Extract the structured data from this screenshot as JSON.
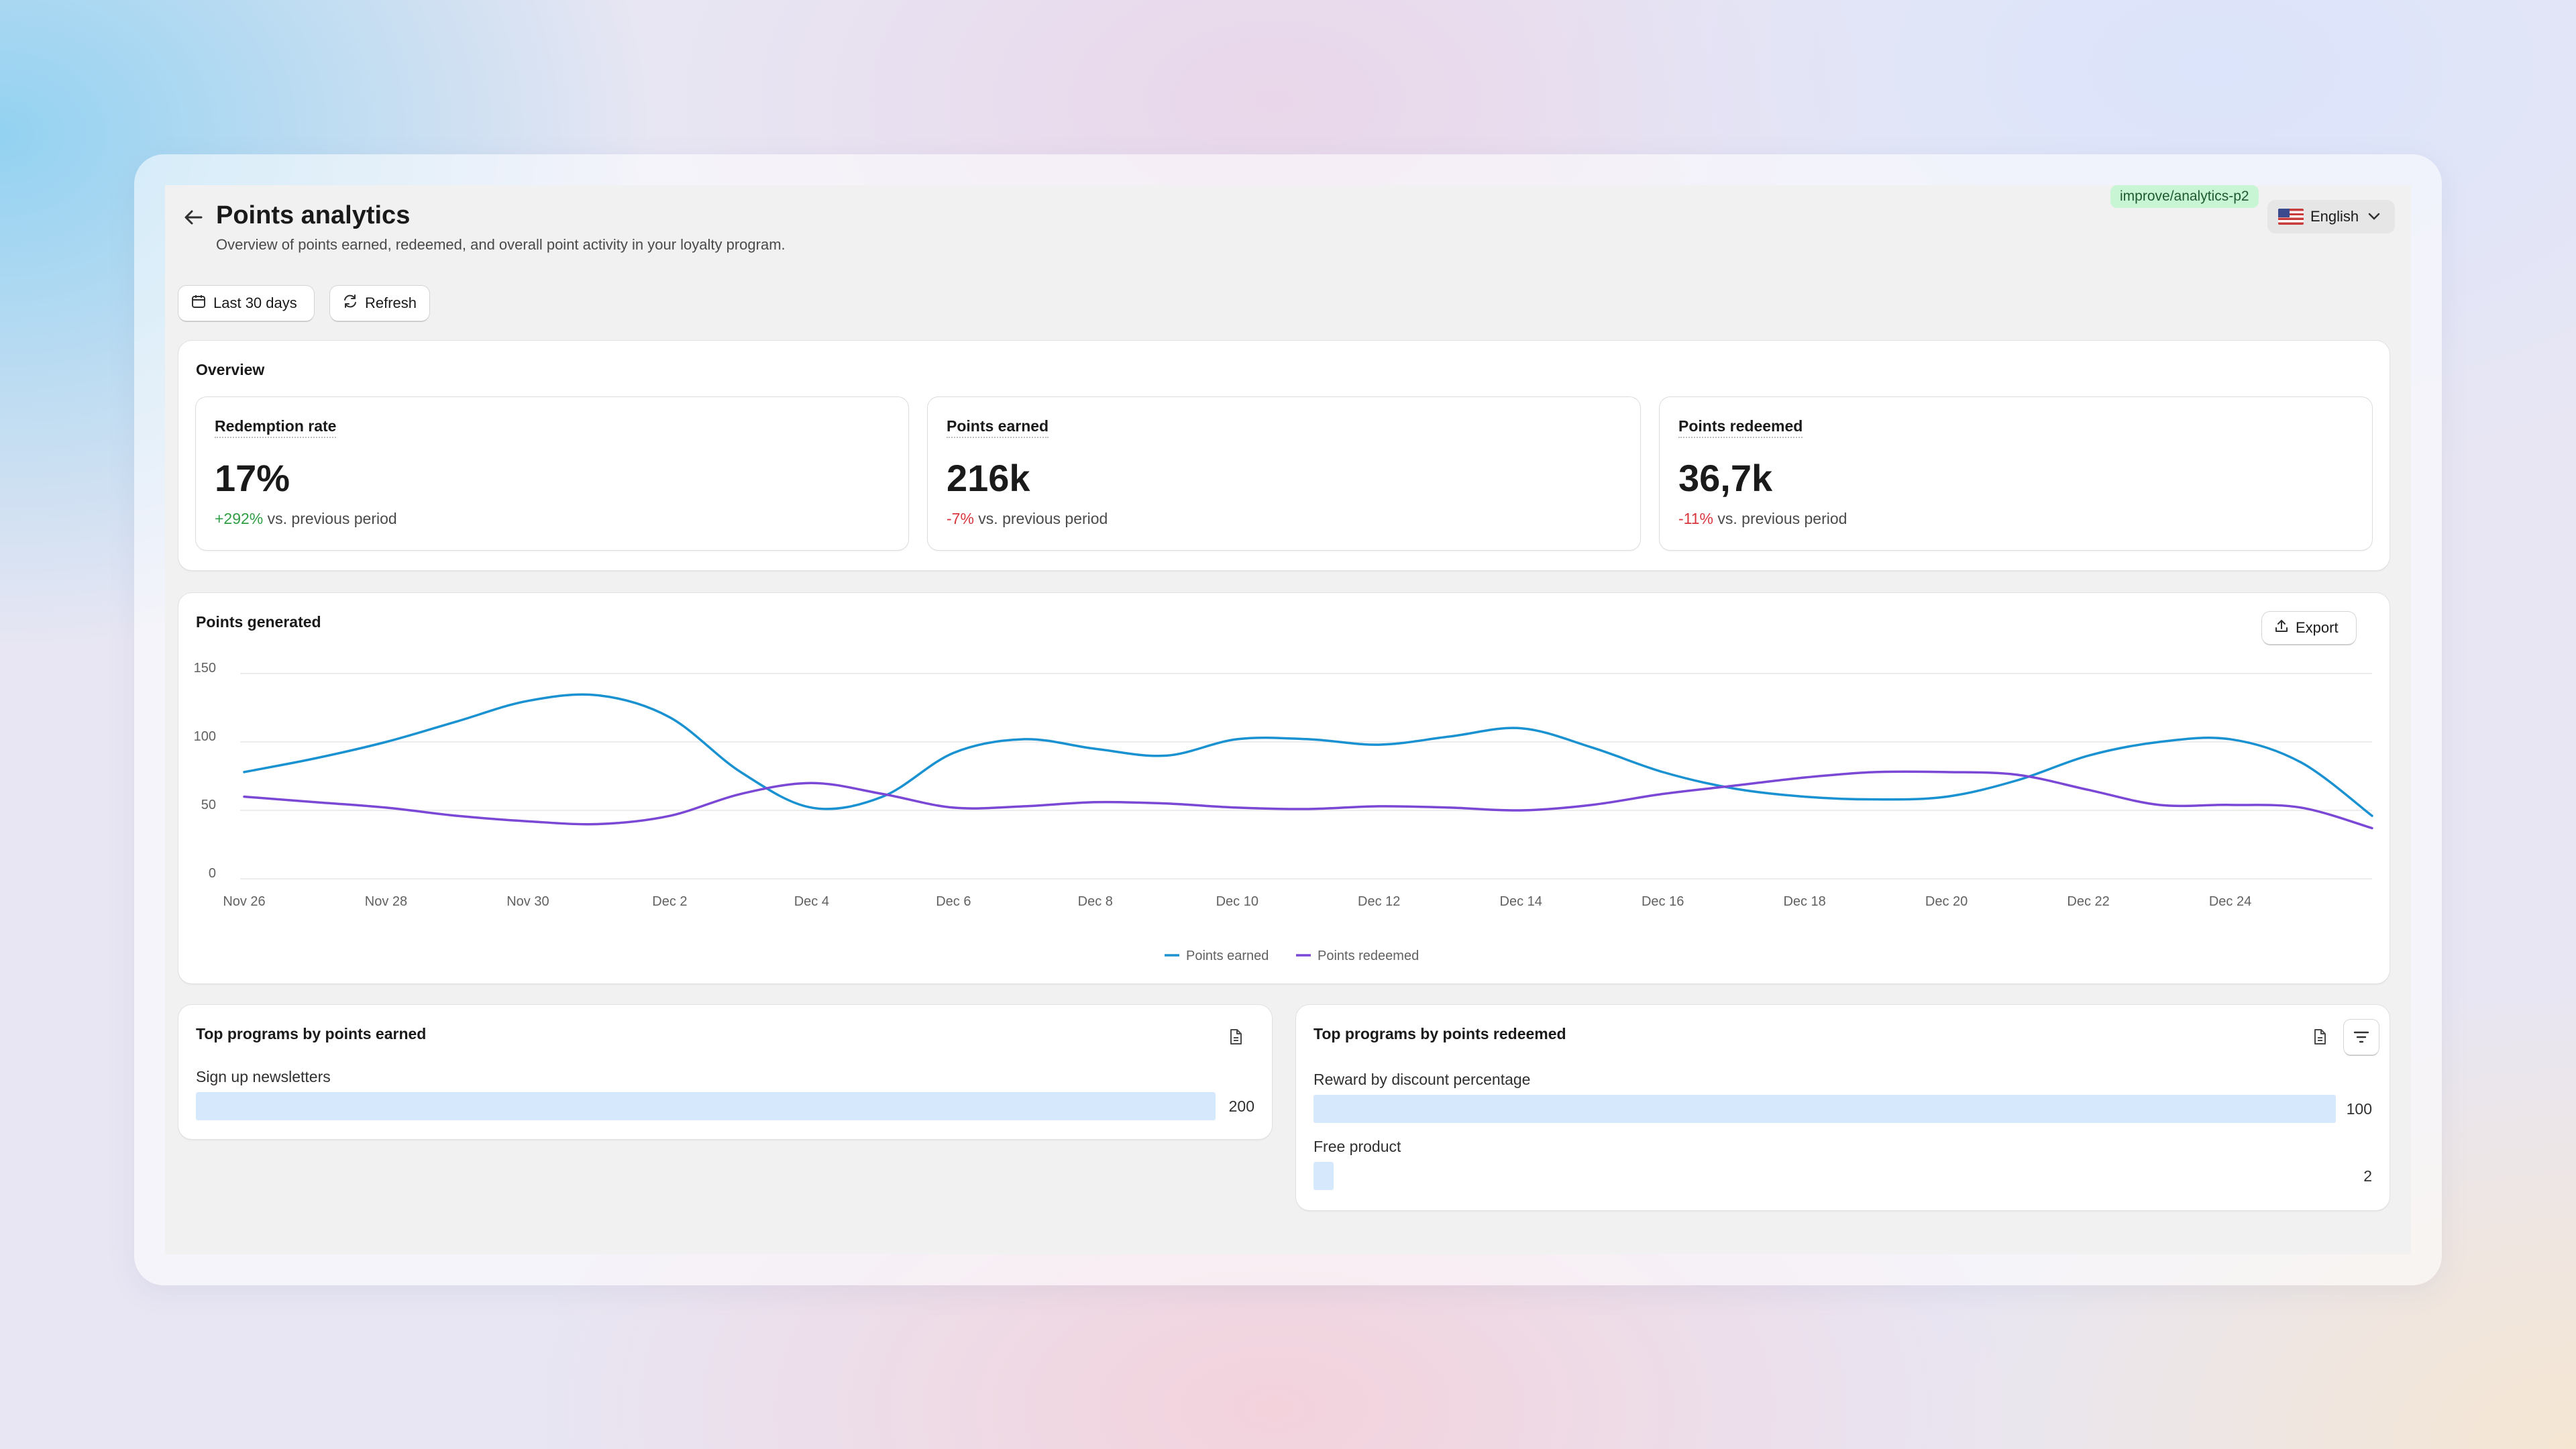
{
  "header": {
    "title": "Points analytics",
    "subtitle": "Overview of points earned, redeemed, and overall point activity in your loyalty program.",
    "branch_tag": "improve/analytics-p2",
    "language": "English"
  },
  "toolbar": {
    "date_range_label": "Last 30 days",
    "refresh_label": "Refresh"
  },
  "overview": {
    "title": "Overview",
    "kpis": [
      {
        "label": "Redemption rate",
        "value": "17%",
        "change": "+292%",
        "change_suffix": "vs. previous period",
        "trend": "up"
      },
      {
        "label": "Points earned",
        "value": "216k",
        "change": "-7%",
        "change_suffix": "vs. previous period",
        "trend": "down"
      },
      {
        "label": "Points redeemed",
        "value": "36,7k",
        "change": "-11%",
        "change_suffix": "vs. previous period",
        "trend": "down"
      }
    ]
  },
  "points_generated": {
    "title": "Points generated",
    "export_label": "Export"
  },
  "chart_data": {
    "type": "line",
    "title": "Points generated",
    "ylim": [
      0,
      150
    ],
    "y_ticks": [
      "0",
      "50",
      "100",
      "150"
    ],
    "x_ticks": [
      "Nov 26",
      "Nov 28",
      "Nov 30",
      "Dec 2",
      "Dec 4",
      "Dec 6",
      "Dec 8",
      "Dec 10",
      "Dec 12",
      "Dec 14",
      "Dec 16",
      "Dec 18",
      "Dec 20",
      "Dec 22",
      "Dec 24"
    ],
    "x": [
      "Nov 26",
      "Nov 27",
      "Nov 28",
      "Nov 29",
      "Nov 30",
      "Dec 1",
      "Dec 2",
      "Dec 3",
      "Dec 4",
      "Dec 5",
      "Dec 6",
      "Dec 7",
      "Dec 8",
      "Dec 9",
      "Dec 10",
      "Dec 11",
      "Dec 12",
      "Dec 13",
      "Dec 14",
      "Dec 15",
      "Dec 16",
      "Dec 17",
      "Dec 18",
      "Dec 19",
      "Dec 20",
      "Dec 21",
      "Dec 22",
      "Dec 23",
      "Dec 24",
      "Dec 25",
      "Dec 26"
    ],
    "series": [
      {
        "name": "Points earned",
        "color": "#1a91d0",
        "values": [
          78,
          88,
          100,
          115,
          130,
          134,
          118,
          78,
          52,
          60,
          92,
          102,
          95,
          90,
          102,
          102,
          98,
          104,
          110,
          96,
          78,
          66,
          60,
          58,
          60,
          72,
          90,
          100,
          102,
          85,
          46
        ]
      },
      {
        "name": "Points redeemed",
        "color": "#7b48d6",
        "values": [
          60,
          56,
          52,
          46,
          42,
          40,
          46,
          62,
          70,
          62,
          52,
          53,
          56,
          55,
          52,
          51,
          53,
          52,
          50,
          54,
          62,
          68,
          74,
          78,
          78,
          76,
          65,
          54,
          54,
          52,
          37
        ]
      }
    ],
    "grid": true,
    "legend_position": "bottom"
  },
  "top_earned": {
    "title": "Top programs by points earned",
    "max": 200,
    "items": [
      {
        "label": "Sign up newsletters",
        "value": 200,
        "value_text": "200"
      }
    ]
  },
  "top_redeemed": {
    "title": "Top programs by points redeemed",
    "max": 100,
    "items": [
      {
        "label": "Reward by discount percentage",
        "value": 100,
        "value_text": "100"
      },
      {
        "label": "Free product",
        "value": 2,
        "value_text": "2"
      }
    ]
  }
}
